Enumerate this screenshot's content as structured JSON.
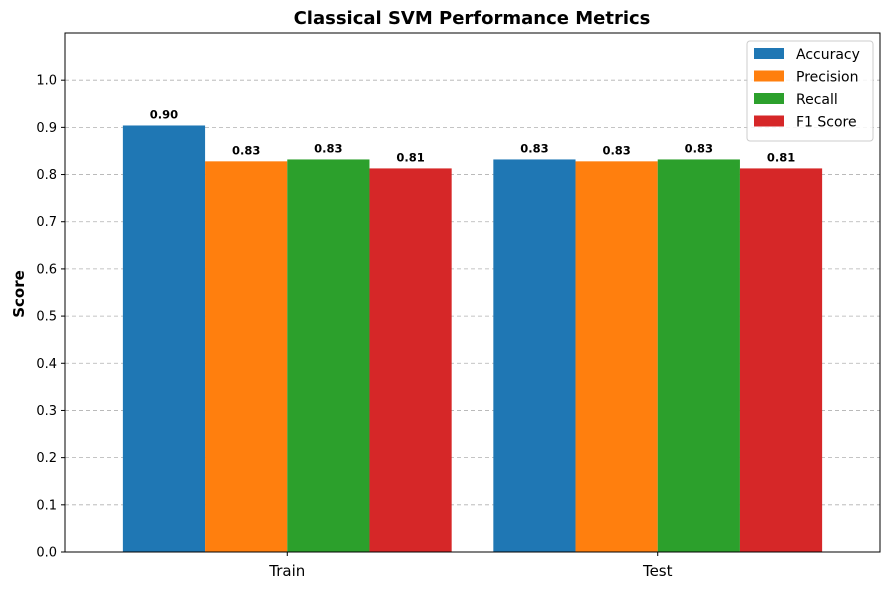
{
  "chart_data": {
    "type": "bar",
    "title": "Classical SVM Performance Metrics",
    "xlabel": "",
    "ylabel": "Score",
    "ylim": [
      0,
      1.1
    ],
    "yticks": [
      "0.0",
      "0.1",
      "0.2",
      "0.3",
      "0.4",
      "0.5",
      "0.6",
      "0.7",
      "0.8",
      "0.9",
      "1.0"
    ],
    "grid": "y",
    "legend_position": "top-right",
    "categories": [
      "Train",
      "Test"
    ],
    "series": [
      {
        "name": "Accuracy",
        "color": "#1f77b4",
        "values": [
          0.904,
          0.832
        ],
        "labels": [
          "0.90",
          "0.83"
        ]
      },
      {
        "name": "Precision",
        "color": "#ff7f0e",
        "values": [
          0.828,
          0.828
        ],
        "labels": [
          "0.83",
          "0.83"
        ]
      },
      {
        "name": "Recall",
        "color": "#2ca02c",
        "values": [
          0.832,
          0.832
        ],
        "labels": [
          "0.83",
          "0.83"
        ]
      },
      {
        "name": "F1 Score",
        "color": "#d62728",
        "values": [
          0.813,
          0.813
        ],
        "labels": [
          "0.81",
          "0.81"
        ]
      }
    ]
  }
}
